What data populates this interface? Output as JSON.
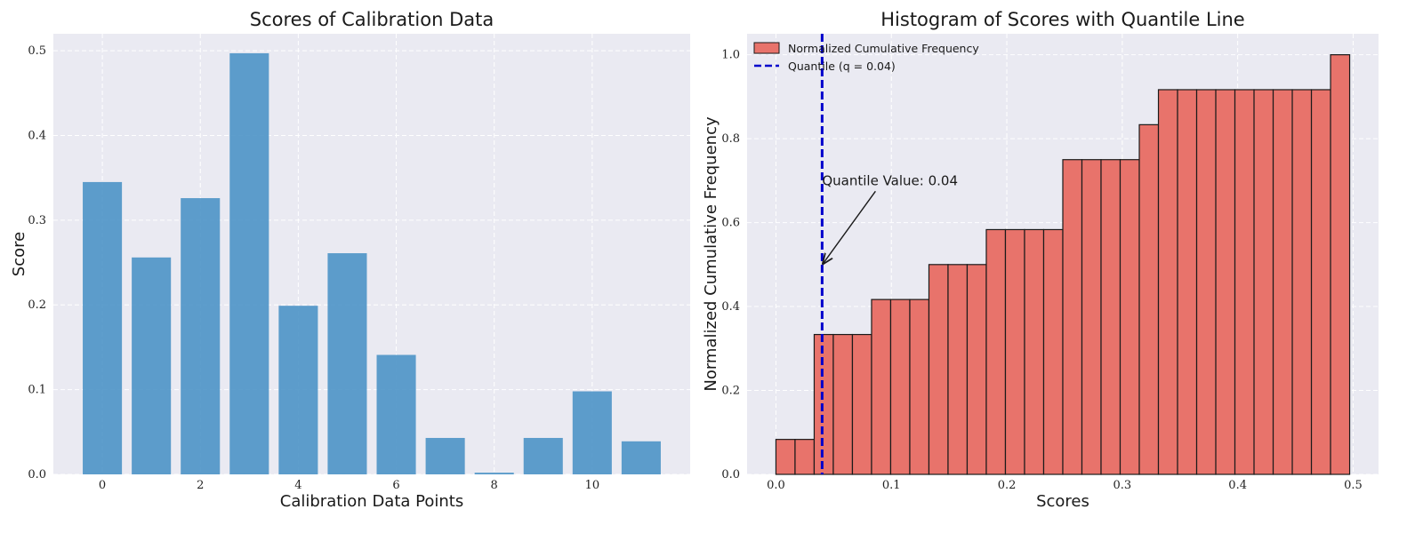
{
  "chart_data": [
    {
      "type": "bar",
      "title": "Scores of Calibration Data",
      "xlabel": "Calibration Data Points",
      "ylabel": "Score",
      "x": [
        0,
        1,
        2,
        3,
        4,
        5,
        6,
        7,
        8,
        9,
        10,
        11
      ],
      "values": [
        0.345,
        0.256,
        0.326,
        0.497,
        0.199,
        0.261,
        0.141,
        0.043,
        0.002,
        0.043,
        0.098,
        0.039
      ],
      "xlim": [
        -1,
        12
      ],
      "ylim": [
        0,
        0.52
      ],
      "xticks": [
        0,
        2,
        4,
        6,
        8,
        10
      ],
      "xtick_labels": [
        "0",
        "2",
        "4",
        "6",
        "8",
        "10"
      ],
      "yticks": [
        0,
        0.1,
        0.2,
        0.3,
        0.4,
        0.5
      ],
      "ytick_labels": [
        "0.0",
        "0.1",
        "0.2",
        "0.3",
        "0.4",
        "0.5"
      ],
      "grid": true,
      "color": "#4c93c6"
    },
    {
      "type": "bar",
      "subtype": "cumulative-histogram",
      "title": "Histogram of Scores with Quantile Line",
      "xlabel": "Scores",
      "ylabel": "Normalized Cumulative Frequency",
      "bin_range": [
        0,
        0.497
      ],
      "values": [
        0.0833,
        0.0833,
        0.3333,
        0.3333,
        0.3333,
        0.4167,
        0.4167,
        0.4167,
        0.5,
        0.5,
        0.5,
        0.5833,
        0.5833,
        0.5833,
        0.5833,
        0.75,
        0.75,
        0.75,
        0.75,
        0.8333,
        0.9167,
        0.9167,
        0.9167,
        0.9167,
        0.9167,
        0.9167,
        0.9167,
        0.9167,
        0.9167,
        1.0
      ],
      "xlim": [
        -0.025,
        0.522
      ],
      "ylim": [
        0,
        1.05
      ],
      "xticks": [
        0,
        0.1,
        0.2,
        0.3,
        0.4,
        0.5
      ],
      "xtick_labels": [
        "0.0",
        "0.1",
        "0.2",
        "0.3",
        "0.4",
        "0.5"
      ],
      "yticks": [
        0,
        0.2,
        0.4,
        0.6,
        0.8,
        1.0
      ],
      "ytick_labels": [
        "0.0",
        "0.2",
        "0.4",
        "0.6",
        "0.8",
        "1.0"
      ],
      "grid": true,
      "color": "#e8736b",
      "edge_color": "#1a1a1a",
      "quantile": {
        "value": 0.04,
        "color": "#0000cc",
        "style": "dashed",
        "legend": "Quantile (q = 0.04)"
      },
      "annotation": {
        "text": "Quantile Value: 0.04",
        "xy": [
          0.04,
          0.5
        ],
        "xytext": [
          0.04,
          0.7
        ]
      },
      "legend": {
        "position": "top-left",
        "entries": [
          "Normalized Cumulative Frequency",
          "Quantile (q = 0.04)"
        ]
      }
    }
  ]
}
